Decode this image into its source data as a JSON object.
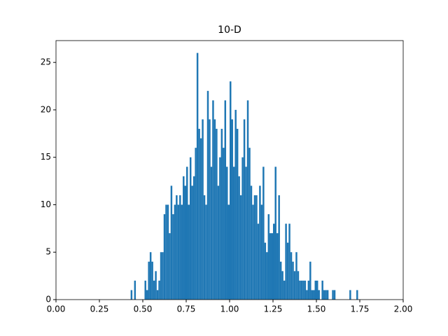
{
  "chart_data": {
    "type": "histogram",
    "title": "10-D",
    "color": "#1f77b4",
    "bins": [
      0.4,
      0.41,
      0.42,
      0.43,
      0.44,
      0.45,
      0.46,
      0.47,
      0.48,
      0.49,
      0.5,
      0.51,
      0.52,
      0.53,
      0.54,
      0.55,
      0.56,
      0.57,
      0.58,
      0.59,
      0.6,
      0.61,
      0.62,
      0.63,
      0.64,
      0.65,
      0.66,
      0.67,
      0.68,
      0.69,
      0.7,
      0.71,
      0.72,
      0.73,
      0.74,
      0.75,
      0.76,
      0.77,
      0.78,
      0.79,
      0.8,
      0.81,
      0.82,
      0.83,
      0.84,
      0.85,
      0.86,
      0.87,
      0.88,
      0.89,
      0.9,
      0.91,
      0.92,
      0.93,
      0.94,
      0.95,
      0.96,
      0.97,
      0.98,
      0.99,
      1.0,
      1.01,
      1.02,
      1.03,
      1.04,
      1.05,
      1.06,
      1.07,
      1.08,
      1.09,
      1.1,
      1.11,
      1.12,
      1.13,
      1.14,
      1.15,
      1.16,
      1.17,
      1.18,
      1.19,
      1.2,
      1.21,
      1.22,
      1.23,
      1.24,
      1.25,
      1.26,
      1.27,
      1.28,
      1.29,
      1.3,
      1.31,
      1.32,
      1.33,
      1.34,
      1.35,
      1.36,
      1.37,
      1.38,
      1.39,
      1.4,
      1.41,
      1.42,
      1.43,
      1.44,
      1.45,
      1.46,
      1.47,
      1.48,
      1.49,
      1.5,
      1.51,
      1.52,
      1.53,
      1.54,
      1.55,
      1.56,
      1.57,
      1.58,
      1.59,
      1.6,
      1.61,
      1.62,
      1.63,
      1.64,
      1.65,
      1.66,
      1.67,
      1.68,
      1.69,
      1.7,
      1.71,
      1.72,
      1.73,
      1.74,
      1.75,
      1.76
    ],
    "values": [
      0,
      0,
      0,
      1,
      0,
      2,
      0,
      0,
      0,
      0,
      0,
      2,
      1,
      4,
      5,
      4,
      2,
      3,
      1,
      2,
      5,
      5,
      9,
      10,
      10,
      7,
      12,
      9,
      10,
      11,
      10,
      11,
      10,
      13,
      12,
      14,
      10,
      15,
      12,
      13,
      16,
      26,
      18,
      17,
      19,
      11,
      10,
      22,
      19,
      14,
      21,
      19,
      18,
      12,
      15,
      18,
      16,
      21,
      14,
      10,
      23,
      19,
      14,
      20,
      18,
      13,
      11,
      15,
      19,
      14,
      21,
      16,
      12,
      10,
      11,
      11,
      8,
      12,
      10,
      14,
      6,
      5,
      9,
      7,
      7,
      8,
      14,
      7,
      11,
      4,
      3,
      2,
      8,
      6,
      8,
      5,
      4,
      3,
      5,
      3,
      2,
      2,
      2,
      2,
      1,
      2,
      4,
      1,
      1,
      2,
      2,
      1,
      0,
      2,
      1,
      1,
      1,
      0,
      0,
      1,
      1,
      0,
      0,
      0,
      0,
      0,
      0,
      0,
      0,
      1,
      0,
      0,
      0,
      1,
      0,
      0
    ],
    "xlim": [
      0,
      2
    ],
    "ylim": [
      0,
      27.3
    ],
    "xticks": [
      {
        "value": 0,
        "label": "0.00"
      },
      {
        "value": 0.25,
        "label": "0.25"
      },
      {
        "value": 0.5,
        "label": "0.50"
      },
      {
        "value": 0.75,
        "label": "0.75"
      },
      {
        "value": 1,
        "label": "1.00"
      },
      {
        "value": 1.25,
        "label": "1.25"
      },
      {
        "value": 1.5,
        "label": "1.50"
      },
      {
        "value": 1.75,
        "label": "1.75"
      },
      {
        "value": 2,
        "label": "2.00"
      }
    ],
    "yticks": [
      0,
      5,
      10,
      15,
      20,
      25
    ]
  }
}
